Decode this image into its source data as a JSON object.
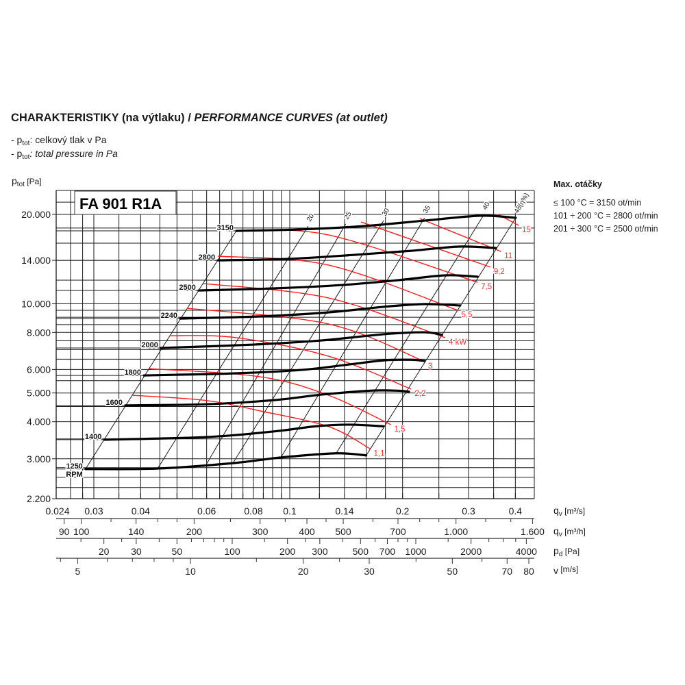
{
  "header": {
    "title_upright": "CHARAKTERISTIKY (na výtlaku) / ",
    "title_italic": "PERFORMANCE CURVES (at outlet)",
    "legend_cz": {
      "prefix": "- p",
      "sub": "tot",
      "text": ": celkový tlak v Pa"
    },
    "legend_en": {
      "prefix": "- p",
      "sub": "tot",
      "text": ": total pressure in Pa"
    }
  },
  "max_speed": {
    "heading": "Max. otáčky",
    "lines": [
      "≤ 100 °C = 3150 ot/min",
      "101 ÷ 200 °C = 2800 ot/min",
      "201 ÷ 300 °C = 2500 ot/min"
    ]
  },
  "colors": {
    "speed_curve": "#000000",
    "efficiency_line": "#1a1a1a",
    "power_curve": "#ff1a1a",
    "power_label": "#ff2a2a",
    "grid": "#1a1a1a"
  },
  "chart_data": {
    "type": "line",
    "model": "FA 901 R1A",
    "ylabel": {
      "main": "p",
      "sub": "tot",
      "unit": " [Pa]"
    },
    "yscale": "log",
    "ylim": [
      2200,
      24000
    ],
    "xscale": "log",
    "xlim": [
      0.024,
      0.448
    ],
    "grid": true,
    "y_ticks": [
      {
        "v": 20000,
        "label": "20.000"
      },
      {
        "v": 14000,
        "label": "14.000"
      },
      {
        "v": 10000,
        "label": "10.000"
      },
      {
        "v": 8000,
        "label": "8.000"
      },
      {
        "v": 6000,
        "label": "6.000"
      },
      {
        "v": 5000,
        "label": "5.000"
      },
      {
        "v": 4000,
        "label": "4.000"
      },
      {
        "v": 3000,
        "label": "3.000"
      },
      {
        "v": 2200,
        "label": "2.200"
      }
    ],
    "y_grid": [
      22000,
      20000,
      18000,
      16000,
      14000,
      12000,
      10000,
      9500,
      9000,
      8500,
      8000,
      7500,
      7000,
      6500,
      6000,
      5500,
      5000,
      4500,
      4000,
      3500,
      3000,
      2800,
      2600,
      2400
    ],
    "x_grid": [
      0.026,
      0.028,
      0.03,
      0.035,
      0.04,
      0.045,
      0.05,
      0.055,
      0.06,
      0.065,
      0.07,
      0.075,
      0.08,
      0.085,
      0.09,
      0.095,
      0.1,
      0.12,
      0.14,
      0.16,
      0.18,
      0.2,
      0.25,
      0.3,
      0.35,
      0.4
    ],
    "x_axes": [
      {
        "name": "qv-m3s",
        "label": "q",
        "sub": "v",
        "unit": " [m³/s]",
        "ticks": [
          {
            "v": 0.024,
            "label": "0.024"
          },
          {
            "v": 0.03,
            "label": "0.03"
          },
          {
            "v": 0.04,
            "label": "0.04"
          },
          {
            "v": 0.06,
            "label": "0.06"
          },
          {
            "v": 0.08,
            "label": "0.08"
          },
          {
            "v": 0.1,
            "label": "0.1"
          },
          {
            "v": 0.14,
            "label": "0.14"
          },
          {
            "v": 0.2,
            "label": "0.2"
          },
          {
            "v": 0.3,
            "label": "0.3"
          },
          {
            "v": 0.4,
            "label": "0.4"
          }
        ]
      },
      {
        "name": "qv-m3h",
        "label": "q",
        "sub": "v",
        "unit": " [m³/h]",
        "ticks": [
          {
            "v": 90,
            "label": "90"
          },
          {
            "v": 100,
            "label": "100"
          },
          {
            "v": 140,
            "label": "140"
          },
          {
            "v": 200,
            "label": "200"
          },
          {
            "v": 300,
            "label": "300"
          },
          {
            "v": 400,
            "label": "400"
          },
          {
            "v": 500,
            "label": "500"
          },
          {
            "v": 700,
            "label": "700"
          },
          {
            "v": 1000,
            "label": "1.000"
          },
          {
            "v": 1600,
            "label": "1.600"
          }
        ],
        "minor": [
          120,
          160,
          180,
          250,
          350,
          450,
          600,
          800,
          900,
          1200,
          1400
        ]
      },
      {
        "name": "pd",
        "label": "p",
        "sub": "d",
        "unit": " [Pa]",
        "ticks": [
          {
            "v": 20,
            "label": "20"
          },
          {
            "v": 30,
            "label": "30"
          },
          {
            "v": 50,
            "label": "50"
          },
          {
            "v": 100,
            "label": "100"
          },
          {
            "v": 200,
            "label": "200"
          },
          {
            "v": 300,
            "label": "300"
          },
          {
            "v": 500,
            "label": "500"
          },
          {
            "v": 700,
            "label": "700"
          },
          {
            "v": 1000,
            "label": "1000"
          },
          {
            "v": 2000,
            "label": "2000"
          },
          {
            "v": 4000,
            "label": "4000"
          }
        ],
        "minor": [
          15,
          25,
          40,
          60,
          70,
          80,
          90,
          150,
          250,
          400,
          600,
          800,
          900,
          1500,
          2500,
          3000,
          3500
        ]
      },
      {
        "name": "v",
        "label": "v",
        "sub": "",
        "unit": " [m/s]",
        "ticks": [
          {
            "v": 5,
            "label": "5"
          },
          {
            "v": 10,
            "label": "10"
          },
          {
            "v": 20,
            "label": "20"
          },
          {
            "v": 30,
            "label": "30"
          },
          {
            "v": 50,
            "label": "50"
          },
          {
            "v": 70,
            "label": "70"
          },
          {
            "v": 80,
            "label": "80"
          }
        ],
        "minor": [
          4.5,
          6,
          7,
          8,
          9,
          15,
          25,
          40,
          60
        ]
      }
    ],
    "speed_curves": [
      {
        "label": "1250",
        "label2": "RPM",
        "points": [
          [
            0.0285,
            2770
          ],
          [
            0.0444,
            2780
          ],
          [
            0.0705,
            2900
          ],
          [
            0.0947,
            3030
          ],
          [
            0.133,
            3130
          ],
          [
            0.16,
            3080
          ]
        ]
      },
      {
        "label": "1400",
        "points": [
          [
            0.032,
            3480
          ],
          [
            0.0596,
            3550
          ],
          [
            0.0908,
            3710
          ],
          [
            0.117,
            3860
          ],
          [
            0.144,
            3910
          ],
          [
            0.178,
            3860
          ]
        ]
      },
      {
        "label": "1600",
        "points": [
          [
            0.0364,
            4540
          ],
          [
            0.0596,
            4580
          ],
          [
            0.0908,
            4730
          ],
          [
            0.122,
            4940
          ],
          [
            0.164,
            5090
          ],
          [
            0.194,
            5090
          ],
          [
            0.208,
            5050
          ]
        ]
      },
      {
        "label": "1800",
        "points": [
          [
            0.0408,
            5730
          ],
          [
            0.0705,
            5820
          ],
          [
            0.107,
            5980
          ],
          [
            0.144,
            6240
          ],
          [
            0.178,
            6440
          ],
          [
            0.211,
            6470
          ],
          [
            0.229,
            6410
          ]
        ]
      },
      {
        "label": "2000",
        "points": [
          [
            0.0453,
            7090
          ],
          [
            0.08,
            7280
          ],
          [
            0.122,
            7520
          ],
          [
            0.178,
            7890
          ],
          [
            0.229,
            8010
          ],
          [
            0.255,
            7850
          ]
        ]
      },
      {
        "label": "2240",
        "points": [
          [
            0.051,
            8910
          ],
          [
            0.0834,
            9060
          ],
          [
            0.127,
            9350
          ],
          [
            0.178,
            9760
          ],
          [
            0.229,
            9970
          ],
          [
            0.285,
            9860
          ]
        ]
      },
      {
        "label": "2500",
        "points": [
          [
            0.0571,
            11080
          ],
          [
            0.0908,
            11260
          ],
          [
            0.138,
            11560
          ],
          [
            0.194,
            12000
          ],
          [
            0.26,
            12460
          ],
          [
            0.317,
            12330
          ]
        ]
      },
      {
        "label": "2800",
        "points": [
          [
            0.0643,
            14000
          ],
          [
            0.0988,
            14160
          ],
          [
            0.15,
            14620
          ],
          [
            0.211,
            15080
          ],
          [
            0.283,
            15580
          ],
          [
            0.355,
            15400
          ]
        ]
      },
      {
        "label": "3150",
        "points": [
          [
            0.072,
            17600
          ],
          [
            0.107,
            17800
          ],
          [
            0.157,
            18260
          ],
          [
            0.229,
            19060
          ],
          [
            0.321,
            19790
          ],
          [
            0.401,
            19480
          ]
        ]
      }
    ],
    "efficiency_lines": [
      {
        "label": "",
        "points": [
          [
            0.0285,
            2770
          ],
          [
            0.072,
            17600
          ]
        ]
      },
      {
        "label": "20",
        "points": [
          [
            0.0444,
            2780
          ],
          [
            0.112,
            18260
          ]
        ]
      },
      {
        "label": "25",
        "points": [
          [
            0.0596,
            2840
          ],
          [
            0.141,
            18560
          ]
        ]
      },
      {
        "label": "30",
        "points": [
          [
            0.0705,
            2900
          ],
          [
            0.178,
            19060
          ]
        ]
      },
      {
        "label": "35",
        "points": [
          [
            0.0947,
            3030
          ],
          [
            0.229,
            19480
          ]
        ]
      },
      {
        "label": "40",
        "points": [
          [
            0.133,
            3130
          ],
          [
            0.33,
            20000
          ]
        ]
      },
      {
        "label": "48(η%)",
        "points": [
          [
            0.16,
            3080
          ],
          [
            0.401,
            19480
          ]
        ]
      }
    ],
    "power_curves": [
      {
        "label": "1,1",
        "points": [
          [
            0.038,
            4910
          ],
          [
            0.0596,
            4720
          ],
          [
            0.0834,
            4350
          ],
          [
            0.127,
            3850
          ],
          [
            0.164,
            3240
          ]
        ]
      },
      {
        "label": "1,5",
        "points": [
          [
            0.0422,
            6040
          ],
          [
            0.0834,
            5670
          ],
          [
            0.127,
            4910
          ],
          [
            0.186,
            3910
          ]
        ]
      },
      {
        "label": "2,2",
        "points": [
          [
            0.0478,
            7800
          ],
          [
            0.072,
            7680
          ],
          [
            0.127,
            6650
          ],
          [
            0.211,
            5150
          ]
        ]
      },
      {
        "label": "3",
        "points": [
          [
            0.0532,
            9650
          ],
          [
            0.127,
            8540
          ],
          [
            0.229,
            6380
          ]
        ]
      },
      {
        "label": "4 kW",
        "points": [
          [
            0.0588,
            11690
          ],
          [
            0.127,
            10450
          ],
          [
            0.26,
            7680
          ]
        ]
      },
      {
        "label": "5,5",
        "points": [
          [
            0.0643,
            14460
          ],
          [
            0.127,
            13490
          ],
          [
            0.281,
            9500
          ]
        ]
      },
      {
        "label": "7,5",
        "points": [
          [
            0.072,
            17600
          ],
          [
            0.127,
            17050
          ],
          [
            0.317,
            11810
          ]
        ]
      },
      {
        "label": "9,2",
        "points": [
          [
            0.155,
            18860
          ],
          [
            0.343,
            13290
          ]
        ]
      },
      {
        "label": "11",
        "points": [
          [
            0.222,
            19370
          ],
          [
            0.366,
            15000
          ]
        ]
      },
      {
        "label": "15",
        "points": [
          [
            0.36,
            20000
          ],
          [
            0.408,
            18370
          ]
        ]
      }
    ]
  }
}
